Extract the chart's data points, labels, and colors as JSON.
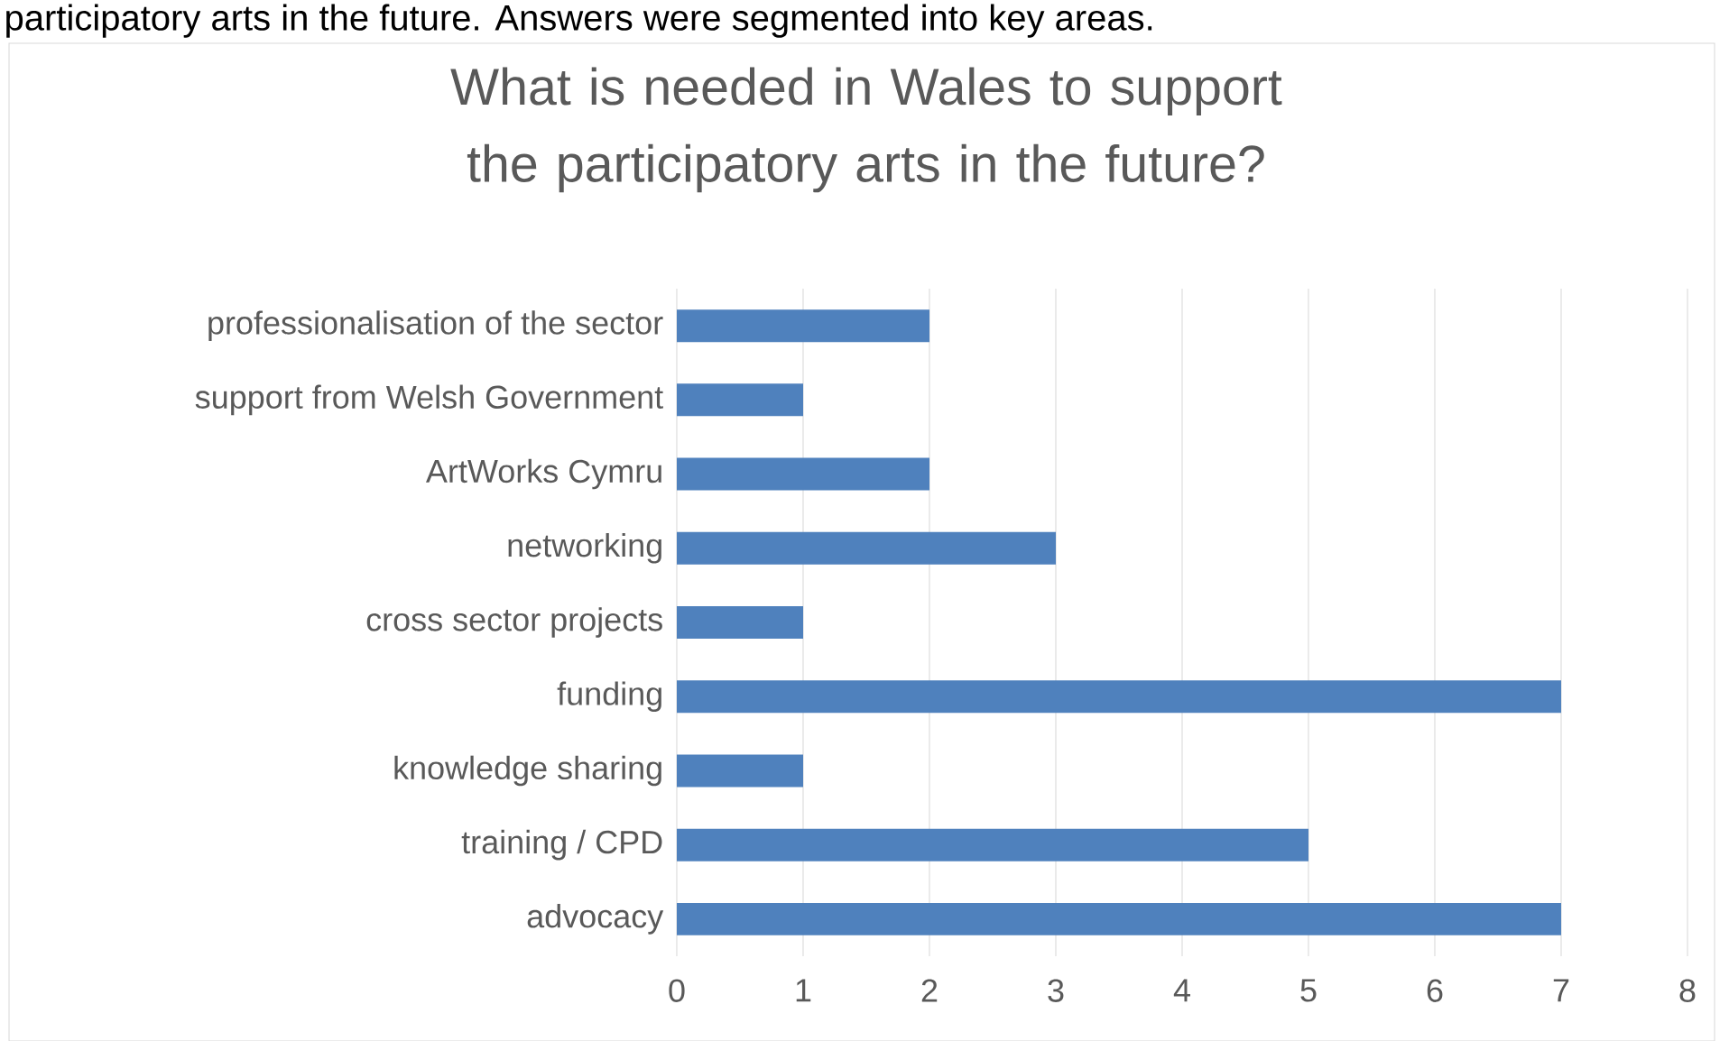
{
  "chart_data": {
    "type": "bar",
    "orientation": "horizontal",
    "title": "What is needed in Wales to support the participatory arts in the future?",
    "annotations": [
      "participatory arts in the future. Answers were segmented into key areas."
    ],
    "categories": [
      "professionalisation of the sector",
      "support from Welsh Government",
      "ArtWorks Cymru",
      "networking",
      "cross sector projects",
      "funding",
      "knowledge sharing",
      "training / CPD",
      "advocacy"
    ],
    "values": [
      2,
      1,
      2,
      3,
      1,
      7,
      1,
      5,
      7
    ],
    "color": "#4f81bd",
    "xlim": [
      0,
      8
    ],
    "xticks": [
      0,
      1,
      2,
      3,
      4,
      5,
      6,
      7,
      8
    ],
    "grid": "x"
  }
}
